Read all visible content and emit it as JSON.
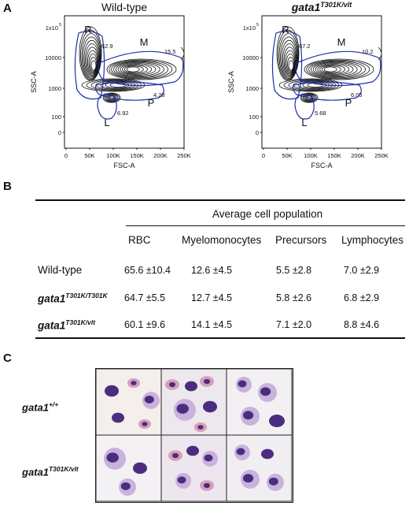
{
  "panels": {
    "a": "A",
    "b": "B",
    "c": "C"
  },
  "flow": {
    "plots": [
      {
        "title": "Wild-type",
        "title_italic": false,
        "gates": {
          "R": "62.9",
          "M": "15.5",
          "P": "4.28",
          "L": "6.92"
        }
      },
      {
        "title": "gata1",
        "title_sup": "T301K/vlt",
        "title_italic": true,
        "gates": {
          "R": "67.2",
          "M": "10.2",
          "P": "6.05",
          "L": "5.68"
        }
      }
    ],
    "gate_letters": {
      "R": "R",
      "M": "M",
      "P": "P",
      "L": "L"
    },
    "ylabel": "SSC-A",
    "xlabel": "FSC-A",
    "yticks": [
      "0",
      "100",
      "1000",
      "10000",
      "1x10",
      "5"
    ],
    "xticks": [
      "0",
      "50K",
      "100K",
      "150K",
      "200K",
      "250K"
    ],
    "colors": {
      "contour": "#111111",
      "gate": "#1f2fa8"
    }
  },
  "table": {
    "caption": "Average cell population",
    "columns": [
      "RBC",
      "Myelomonocytes",
      "Precursors",
      "Lymphocytes"
    ],
    "rows": [
      {
        "label": "Wild-type",
        "label_sup": "",
        "italic": false,
        "values": [
          "65.6 ±10.4",
          "12.6 ±4.5",
          "5.5 ±2.8",
          "7.0 ±2.9"
        ]
      },
      {
        "label": "gata1",
        "label_sup": "T301K/T301K",
        "italic": true,
        "values": [
          "64.7 ±5.5",
          "12.7 ±4.5",
          "5.8 ±2.6",
          "6.8 ±2.9"
        ]
      },
      {
        "label": "gata1",
        "label_sup": "T301K/vlt",
        "italic": true,
        "values": [
          "60.1 ±9.6",
          "14.1 ±4.5",
          "7.1 ±2.0",
          "8.8 ±4.6"
        ]
      }
    ]
  },
  "micrographs": {
    "rows": [
      {
        "label": "gata1",
        "label_sup": "+/+"
      },
      {
        "label": "gata1",
        "label_sup": "T301K/vlt"
      }
    ],
    "colors": {
      "cytoplasm": "#c9b3dc",
      "nucleus": "#4b2c7f",
      "rbc": "#d79fb7"
    }
  }
}
